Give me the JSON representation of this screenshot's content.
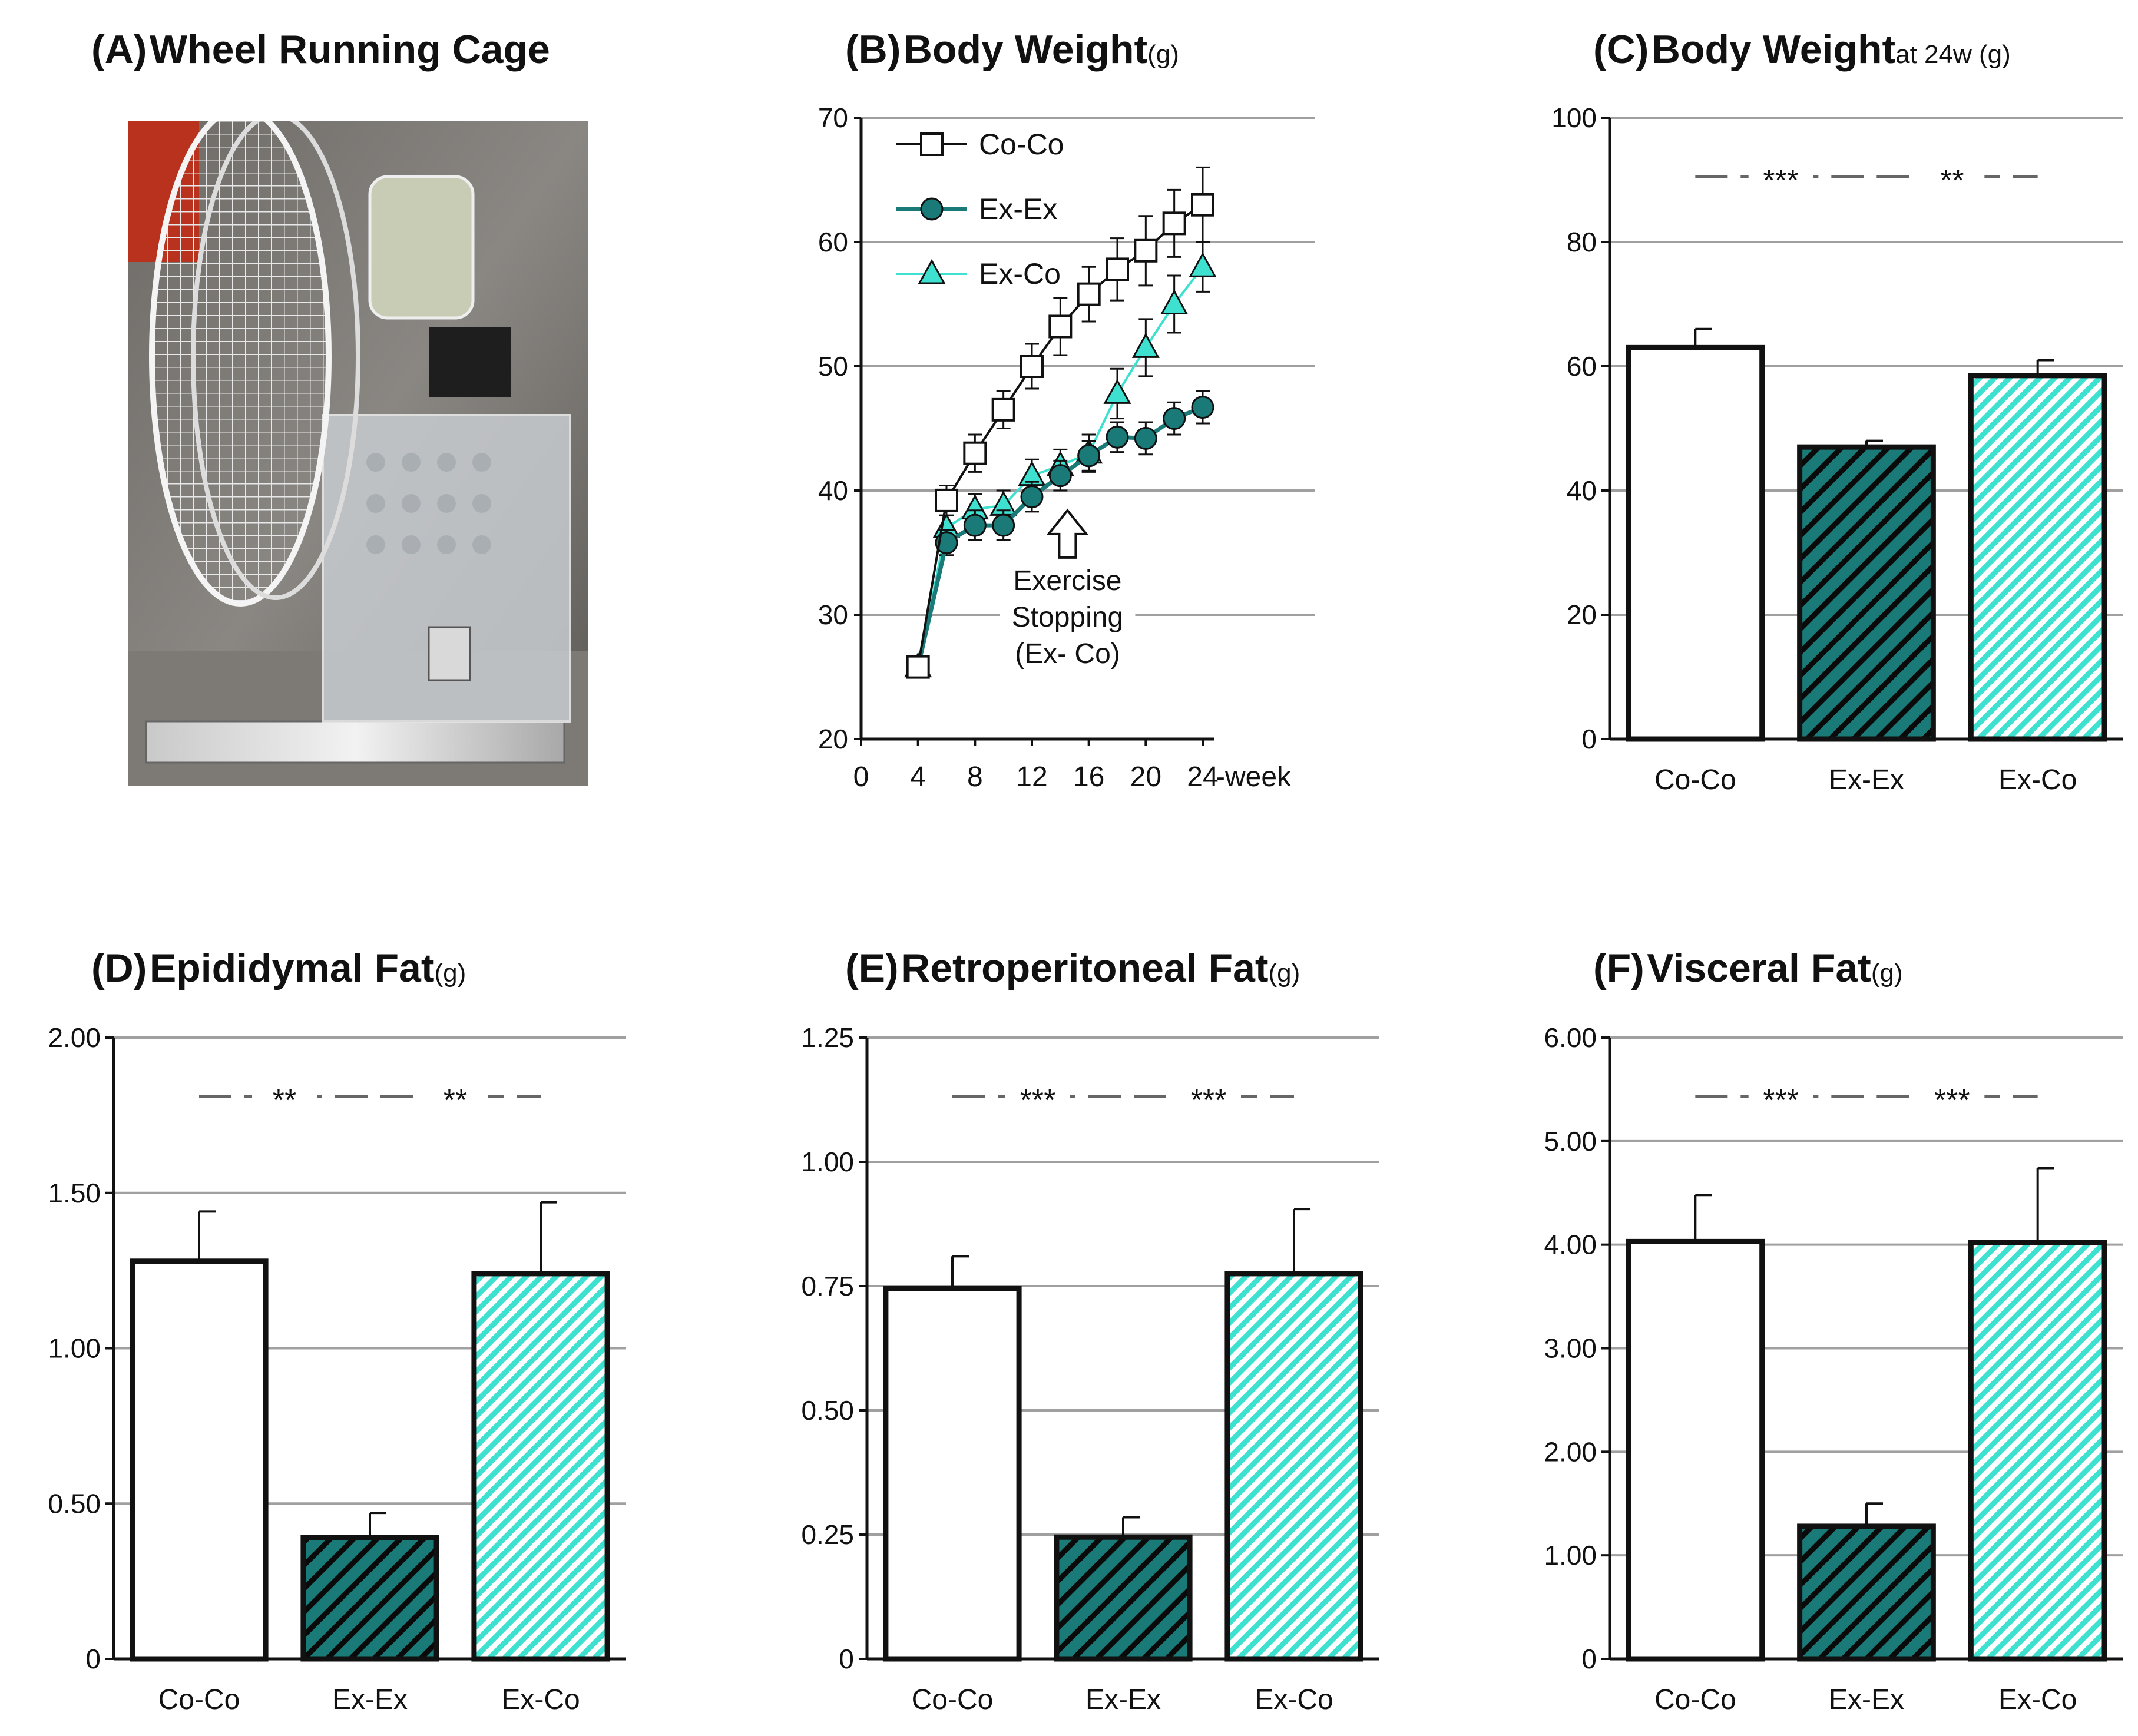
{
  "panels": {
    "A": {
      "prefix": "(A)",
      "title": "Wheel Running Cage"
    },
    "B": {
      "prefix": "(B)",
      "title": "Body Weight",
      "unit": "(g)"
    },
    "C": {
      "prefix": "(C)",
      "title": "Body Weight",
      "unit": "at 24w (g)"
    },
    "D": {
      "prefix": "(D)",
      "title": "Epididymal Fat",
      "unit": "(g)"
    },
    "E": {
      "prefix": "(E)",
      "title": "Retroperitoneal Fat",
      "unit": "(g)"
    },
    "F": {
      "prefix": "(F)",
      "title": "Visceral Fat",
      "unit": "(g)"
    }
  },
  "colors": {
    "teal_dark": "#1a7a78",
    "teal_light": "#3ee0cf",
    "black": "#111111",
    "grid": "#a0a0a0"
  },
  "photo": {
    "icon": "wheel-running-cage-photo"
  },
  "annotation": {
    "lines": [
      "Exercise",
      "Stopping",
      "(Ex- Co)"
    ]
  },
  "chart_data": [
    {
      "id": "B",
      "type": "line",
      "xlabel_suffix": "-week",
      "x_ticks": [
        "0",
        "4",
        "8",
        "12",
        "16",
        "20",
        "24"
      ],
      "y_ticks": [
        "20",
        "30",
        "40",
        "50",
        "60",
        "70"
      ],
      "xlim": [
        0,
        24
      ],
      "ylim": [
        20,
        70
      ],
      "grid": true,
      "legend_position": "top-left",
      "series": [
        {
          "name": "Co-Co",
          "marker": "square",
          "color": "#111111",
          "x": [
            4,
            6,
            8,
            10,
            12,
            14,
            16,
            18,
            20,
            22,
            24
          ],
          "y": [
            25.8,
            39.2,
            43.0,
            46.5,
            50.0,
            53.2,
            55.8,
            57.8,
            59.3,
            61.5,
            63.0
          ],
          "err": [
            0.8,
            1.2,
            1.5,
            1.5,
            1.8,
            2.3,
            2.2,
            2.5,
            2.8,
            2.7,
            3.0
          ]
        },
        {
          "name": "Ex-Ex",
          "marker": "circle",
          "color": "#1a7a78",
          "x": [
            4,
            6,
            8,
            10,
            12,
            14,
            16,
            18,
            20,
            22,
            24
          ],
          "y": [
            25.8,
            35.8,
            37.2,
            37.2,
            39.5,
            41.2,
            42.8,
            44.3,
            44.2,
            45.8,
            46.7
          ],
          "err": [
            0.8,
            1.0,
            1.2,
            1.2,
            1.2,
            1.2,
            1.2,
            1.2,
            1.3,
            1.3,
            1.3
          ]
        },
        {
          "name": "Ex-Co",
          "marker": "triangle",
          "color": "#3ee0cf",
          "x": [
            4,
            6,
            8,
            10,
            12,
            14,
            16,
            18,
            20,
            22,
            24
          ],
          "y": [
            25.8,
            37.0,
            38.5,
            38.8,
            41.2,
            42.0,
            43.0,
            47.8,
            51.5,
            55.0,
            58.0
          ],
          "err": [
            0.8,
            1.0,
            1.2,
            1.2,
            1.3,
            1.3,
            1.5,
            2.0,
            2.3,
            2.3,
            2.0
          ]
        }
      ]
    },
    {
      "id": "C",
      "type": "bar",
      "categories": [
        "Co-Co",
        "Ex-Ex",
        "Ex-Co"
      ],
      "values": [
        63.0,
        47.0,
        58.5
      ],
      "errors": [
        3.0,
        1.0,
        2.5
      ],
      "y_ticks": [
        "0",
        "20",
        "40",
        "60",
        "80",
        "100"
      ],
      "ylim": [
        0,
        100
      ],
      "significance": [
        "***",
        "**"
      ]
    },
    {
      "id": "D",
      "type": "bar",
      "categories": [
        "Co-Co",
        "Ex-Ex",
        "Ex-Co"
      ],
      "values": [
        1.28,
        0.39,
        1.24
      ],
      "errors": [
        0.16,
        0.08,
        0.23
      ],
      "y_ticks": [
        "0",
        "0.50",
        "1.00",
        "1.50",
        "2.00"
      ],
      "ylim": [
        0,
        2.0
      ],
      "significance": [
        "**",
        "**"
      ]
    },
    {
      "id": "E",
      "type": "bar",
      "categories": [
        "Co-Co",
        "Ex-Ex",
        "Ex-Co"
      ],
      "values": [
        0.745,
        0.245,
        0.775
      ],
      "errors": [
        0.065,
        0.04,
        0.13
      ],
      "y_ticks": [
        "0",
        "0.25",
        "0.50",
        "0.75",
        "1.00",
        "1.25"
      ],
      "ylim": [
        0,
        1.25
      ],
      "significance": [
        "***",
        "***"
      ]
    },
    {
      "id": "F",
      "type": "bar",
      "categories": [
        "Co-Co",
        "Ex-Ex",
        "Ex-Co"
      ],
      "values": [
        4.03,
        1.28,
        4.02
      ],
      "errors": [
        0.45,
        0.22,
        0.72
      ],
      "y_ticks": [
        "0",
        "1.00",
        "2.00",
        "3.00",
        "4.00",
        "5.00",
        "6.00"
      ],
      "ylim": [
        0,
        6.0
      ],
      "significance": [
        "***",
        "***"
      ]
    }
  ]
}
